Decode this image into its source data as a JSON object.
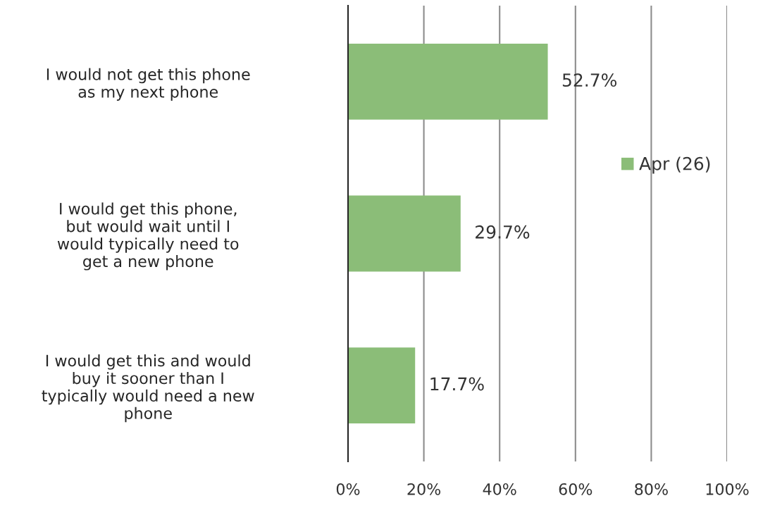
{
  "chart_data": {
    "type": "bar",
    "orientation": "horizontal",
    "categories": [
      "I would not get this phone as my next phone",
      "I would get this phone, but would wait until I would typically need to get a new phone",
      "I would get this and would buy it sooner than I typically would need a new phone"
    ],
    "series": [
      {
        "name": "Apr (26)",
        "color": "#8bbd78",
        "values": [
          52.7,
          29.7,
          17.7
        ],
        "value_labels": [
          "52.7%",
          "29.7%",
          "17.7%"
        ]
      }
    ],
    "xlim": [
      0,
      100
    ],
    "xticks": [
      {
        "value": 0,
        "label": "0%"
      },
      {
        "value": 20,
        "label": "20%"
      },
      {
        "value": 40,
        "label": "40%"
      },
      {
        "value": 60,
        "label": "60%"
      },
      {
        "value": 80,
        "label": "80%"
      },
      {
        "value": 100,
        "label": "100%"
      }
    ],
    "grid": "x",
    "legend": "right"
  }
}
